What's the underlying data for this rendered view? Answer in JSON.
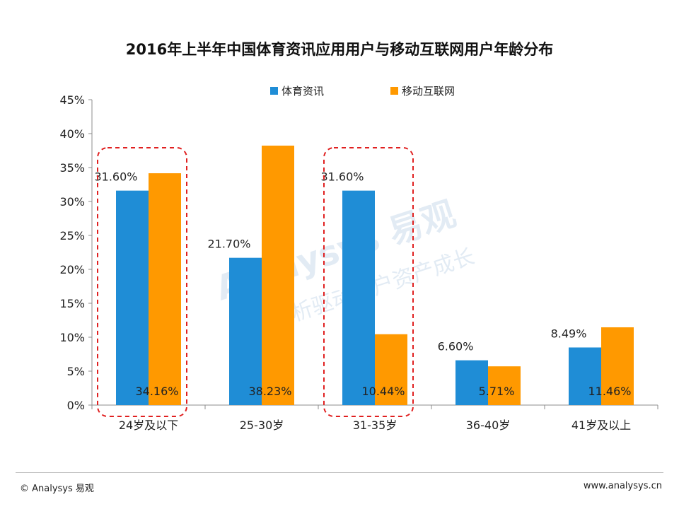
{
  "chart_data": {
    "type": "bar",
    "title": "2016年上半年中国体育资讯应用用户与移动互联网用户年龄分布",
    "categories": [
      "24岁及以下",
      "25-30岁",
      "31-35岁",
      "36-40岁",
      "41岁及以上"
    ],
    "series": [
      {
        "name": "体育资讯",
        "color": "#1f8dd6",
        "values": [
          31.6,
          21.7,
          31.6,
          6.6,
          8.49
        ],
        "labels": [
          "31.60%",
          "21.70%",
          "31.60%",
          "6.60%",
          "8.49%"
        ]
      },
      {
        "name": "移动互联网",
        "color": "#ff9900",
        "values": [
          34.16,
          38.23,
          10.44,
          5.71,
          11.46
        ],
        "labels": [
          "34.16%",
          "38.23%",
          "10.44%",
          "5.71%",
          "11.46%"
        ]
      }
    ],
    "yticks": [
      "0%",
      "5%",
      "10%",
      "15%",
      "20%",
      "25%",
      "30%",
      "35%",
      "40%",
      "45%"
    ],
    "ylim": [
      0,
      45
    ],
    "legend_position": "top",
    "highlighted_categories": [
      "24岁及以下",
      "31-35岁"
    ],
    "highlight_color": "#e02020",
    "watermark": {
      "brand": "Analysys 易观",
      "slogan1": "实时分析驱动用户资产成长"
    }
  },
  "footer": {
    "left": "© Analysys 易观",
    "right": "www.analysys.cn"
  }
}
